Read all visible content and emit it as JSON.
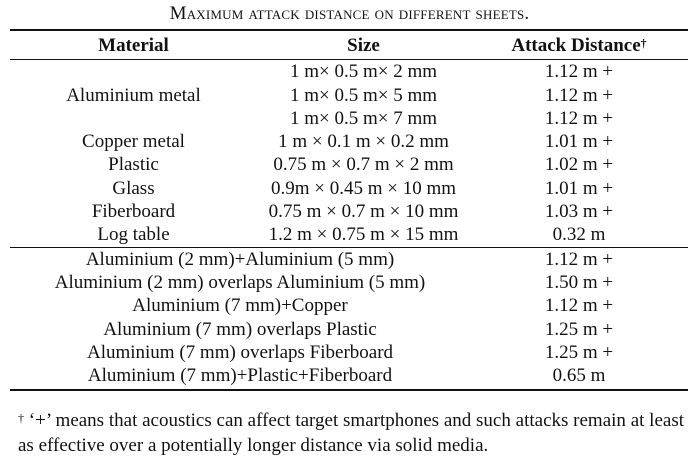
{
  "caption": "Maximum attack distance on different sheets.",
  "headers": {
    "material": "Material",
    "size": "Size",
    "distance": "Attack Distance",
    "distance_mark": "†"
  },
  "single_rows": [
    {
      "material": "Aluminium metal",
      "size": "1 m× 0.5 m× 2 mm",
      "distance": "1.12 m +"
    },
    {
      "material": "",
      "size": "1 m× 0.5 m× 5 mm",
      "distance": "1.12 m +"
    },
    {
      "material": "",
      "size": "1 m× 0.5 m× 7 mm",
      "distance": "1.12 m +"
    },
    {
      "material": "Copper metal",
      "size": "1 m × 0.1 m × 0.2 mm",
      "distance": "1.01 m +"
    },
    {
      "material": "Plastic",
      "size": "0.75 m × 0.7 m × 2 mm",
      "distance": "1.02 m +"
    },
    {
      "material": "Glass",
      "size": "0.9m × 0.45 m × 10 mm",
      "distance": "1.01 m +"
    },
    {
      "material": "Fiberboard",
      "size": "0.75 m × 0.7 m × 10 mm",
      "distance": "1.03 m +"
    },
    {
      "material": "Log table",
      "size": "1.2 m × 0.75 m × 15 mm",
      "distance": "0.32 m"
    }
  ],
  "combo_rows": [
    {
      "material": "Aluminium (2 mm)+Aluminium (5 mm)",
      "distance": "1.12 m +"
    },
    {
      "material": "Aluminium (2 mm) overlaps Aluminium (5 mm)",
      "distance": "1.50 m +"
    },
    {
      "material": "Aluminium (7 mm)+Copper",
      "distance": "1.12 m +"
    },
    {
      "material": "Aluminium (7 mm) overlaps Plastic",
      "distance": "1.25 m +"
    },
    {
      "material": "Aluminium (7 mm) overlaps Fiberboard",
      "distance": "1.25 m +"
    },
    {
      "material": "Aluminium (7 mm)+Plastic+Fiberboard",
      "distance": "0.65 m"
    }
  ],
  "footnote": {
    "mark": "†",
    "text": " ‘+’ means that acoustics can affect target smartphones and such attacks remain at least as effective over a potentially longer distance via solid media."
  }
}
